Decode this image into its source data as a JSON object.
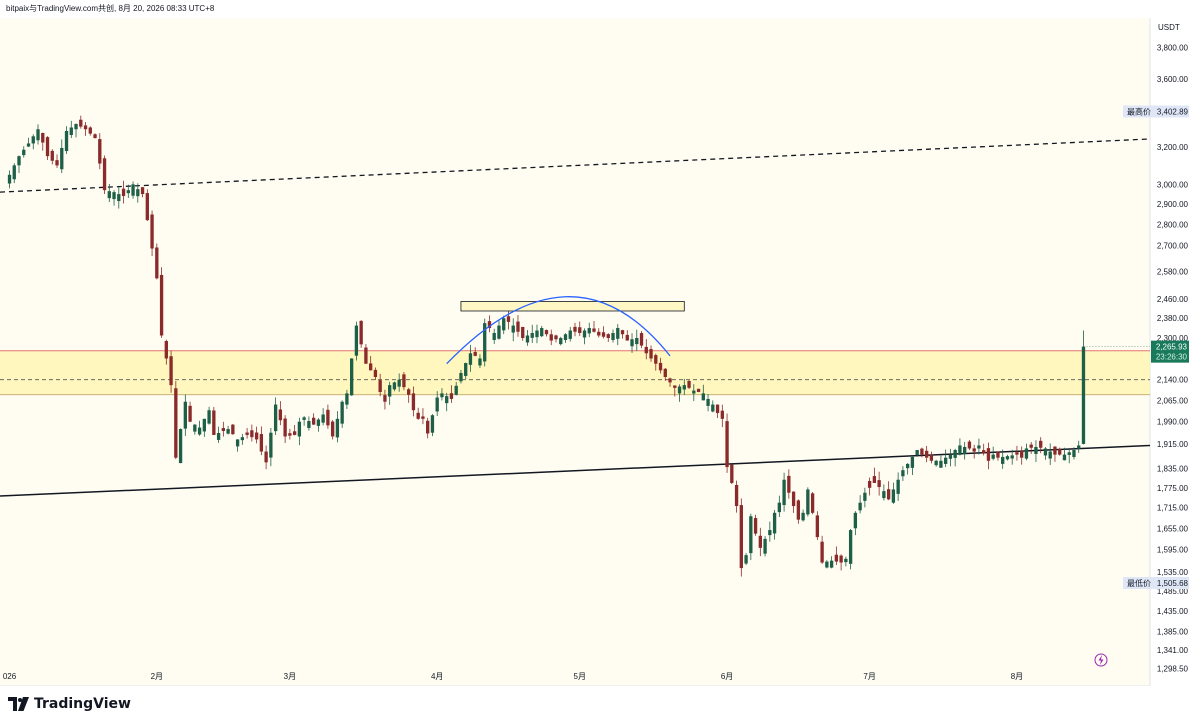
{
  "header": {
    "caption": "bitpaix与TradingView.com共创, 8月 20, 2026 08:33 UTC+8"
  },
  "footer": {
    "brand": "TradingView"
  },
  "chart_data": {
    "type": "candlestick",
    "currency_label": "USDT",
    "y_scale": "log",
    "ylim": [
      1260,
      4000
    ],
    "y_ticks": [
      "3,800.00",
      "3,600.00",
      "3,200.00",
      "3,000.00",
      "2,900.00",
      "2,800.00",
      "2,700.00",
      "2,580.00",
      "2,460.00",
      "2,380.00",
      "2,300.00",
      "2,140.00",
      "2,065.00",
      "1,990.00",
      "1,915.00",
      "1,835.00",
      "1,775.00",
      "1,715.00",
      "1,655.00",
      "1,595.00",
      "1,535.00",
      "1,485.00",
      "1,435.00",
      "1,385.00",
      "1,341.00",
      "1,298.50"
    ],
    "x_ticks": [
      {
        "label": "026",
        "day": 0
      },
      {
        "label": "2月",
        "day": 31
      },
      {
        "label": "3月",
        "day": 59
      },
      {
        "label": "4月",
        "day": 90
      },
      {
        "label": "5月",
        "day": 120
      },
      {
        "label": "6月",
        "day": 151
      },
      {
        "label": "7月",
        "day": 181
      },
      {
        "label": "8月",
        "day": 212
      }
    ],
    "xlim_days": [
      -2,
      240
    ],
    "high_label": {
      "text": "最高价",
      "value": 3402.89,
      "value_text": "3,402.89"
    },
    "low_label": {
      "text": "最低价",
      "value": 1505.68,
      "value_text": "1,505.68"
    },
    "last_price": {
      "value": 2265.93,
      "value_text": "2,265.93",
      "countdown": "23:26:30"
    },
    "zone": {
      "top": 2250,
      "mid": 2140,
      "bottom": 2085
    },
    "dashed_trendline": {
      "from": {
        "day": -2,
        "price": 2960
      },
      "to": {
        "day": 240,
        "price": 3245
      }
    },
    "solid_trendline": {
      "from": {
        "day": -2,
        "price": 1750
      },
      "to": {
        "day": 240,
        "price": 1910
      }
    },
    "resistance_box": {
      "from_day": 95,
      "to_day": 142,
      "top": 2450,
      "bottom": 2410
    },
    "arc": {
      "from": {
        "day": 92,
        "price": 2200
      },
      "peak": {
        "day": 117,
        "price": 2470
      },
      "to": {
        "day": 139,
        "price": 2230
      }
    },
    "anchors": [
      [
        0,
        3050
      ],
      [
        2,
        3150
      ],
      [
        4,
        3220
      ],
      [
        6,
        3300
      ],
      [
        8,
        3150
      ],
      [
        10,
        3100
      ],
      [
        12,
        3290
      ],
      [
        14,
        3330
      ],
      [
        16,
        3300
      ],
      [
        18,
        3250
      ],
      [
        20,
        2970
      ],
      [
        22,
        2960
      ],
      [
        24,
        2940
      ],
      [
        26,
        3000
      ],
      [
        28,
        2950
      ],
      [
        29,
        2820
      ],
      [
        31,
        2550
      ],
      [
        32,
        2310
      ],
      [
        33,
        2220
      ],
      [
        34,
        2120
      ],
      [
        35,
        1870
      ],
      [
        37,
        2060
      ],
      [
        38,
        1990
      ],
      [
        40,
        1970
      ],
      [
        42,
        2030
      ],
      [
        43,
        1945
      ],
      [
        46,
        1965
      ],
      [
        48,
        1930
      ],
      [
        50,
        1945
      ],
      [
        52,
        1930
      ],
      [
        53,
        1890
      ],
      [
        54,
        1855
      ],
      [
        56,
        2050
      ],
      [
        58,
        1940
      ],
      [
        60,
        1945
      ],
      [
        61,
        1990
      ],
      [
        62,
        2005
      ],
      [
        64,
        1980
      ],
      [
        66,
        2015
      ],
      [
        68,
        1940
      ],
      [
        70,
        2060
      ],
      [
        71,
        2090
      ],
      [
        73,
        2350
      ],
      [
        75,
        2200
      ],
      [
        77,
        2150
      ],
      [
        78,
        2095
      ],
      [
        79,
        2060
      ],
      [
        80,
        2120
      ],
      [
        82,
        2140
      ],
      [
        84,
        2085
      ],
      [
        85,
        2030
      ],
      [
        86,
        2000
      ],
      [
        87,
        2000
      ],
      [
        88,
        1950
      ],
      [
        90,
        2075
      ],
      [
        91,
        2090
      ],
      [
        93,
        2070
      ],
      [
        95,
        2165
      ],
      [
        97,
        2240
      ],
      [
        99,
        2220
      ],
      [
        100,
        2360
      ],
      [
        102,
        2320
      ],
      [
        104,
        2380
      ],
      [
        106,
        2350
      ],
      [
        108,
        2300
      ],
      [
        110,
        2320
      ],
      [
        112,
        2340
      ],
      [
        114,
        2290
      ],
      [
        116,
        2300
      ],
      [
        118,
        2330
      ],
      [
        120,
        2320
      ],
      [
        122,
        2340
      ],
      [
        124,
        2310
      ],
      [
        126,
        2300
      ],
      [
        128,
        2340
      ],
      [
        130,
        2290
      ],
      [
        132,
        2300
      ],
      [
        134,
        2240
      ],
      [
        136,
        2200
      ],
      [
        138,
        2150
      ],
      [
        140,
        2110
      ],
      [
        142,
        2120
      ],
      [
        144,
        2100
      ],
      [
        146,
        2090
      ],
      [
        148,
        2050
      ],
      [
        149,
        2020
      ],
      [
        150,
        2000
      ],
      [
        151,
        1840
      ],
      [
        152,
        1790
      ],
      [
        153,
        1720
      ],
      [
        154,
        1545
      ],
      [
        155,
        1580
      ],
      [
        156,
        1690
      ],
      [
        157,
        1640
      ],
      [
        158,
        1600
      ],
      [
        160,
        1650
      ],
      [
        161,
        1700
      ],
      [
        162,
        1730
      ],
      [
        163,
        1800
      ],
      [
        164,
        1760
      ],
      [
        166,
        1680
      ],
      [
        167,
        1700
      ],
      [
        168,
        1770
      ],
      [
        169,
        1700
      ],
      [
        171,
        1560
      ],
      [
        173,
        1565
      ],
      [
        175,
        1560
      ],
      [
        176,
        1570
      ],
      [
        177,
        1650
      ],
      [
        178,
        1700
      ],
      [
        180,
        1760
      ],
      [
        182,
        1790
      ],
      [
        184,
        1765
      ],
      [
        185,
        1740
      ],
      [
        187,
        1800
      ],
      [
        188,
        1830
      ],
      [
        189,
        1850
      ],
      [
        191,
        1895
      ],
      [
        192,
        1880
      ],
      [
        194,
        1860
      ],
      [
        196,
        1860
      ],
      [
        198,
        1880
      ],
      [
        200,
        1910
      ],
      [
        202,
        1900
      ],
      [
        203,
        1890
      ],
      [
        204,
        1910
      ],
      [
        206,
        1860
      ],
      [
        207,
        1880
      ],
      [
        208,
        1870
      ],
      [
        210,
        1875
      ],
      [
        212,
        1880
      ],
      [
        213,
        1870
      ],
      [
        214,
        1900
      ],
      [
        216,
        1905
      ],
      [
        218,
        1900
      ],
      [
        220,
        1880
      ],
      [
        222,
        1880
      ],
      [
        224,
        1895
      ],
      [
        225,
        1910
      ],
      [
        226,
        2265.93
      ]
    ]
  }
}
